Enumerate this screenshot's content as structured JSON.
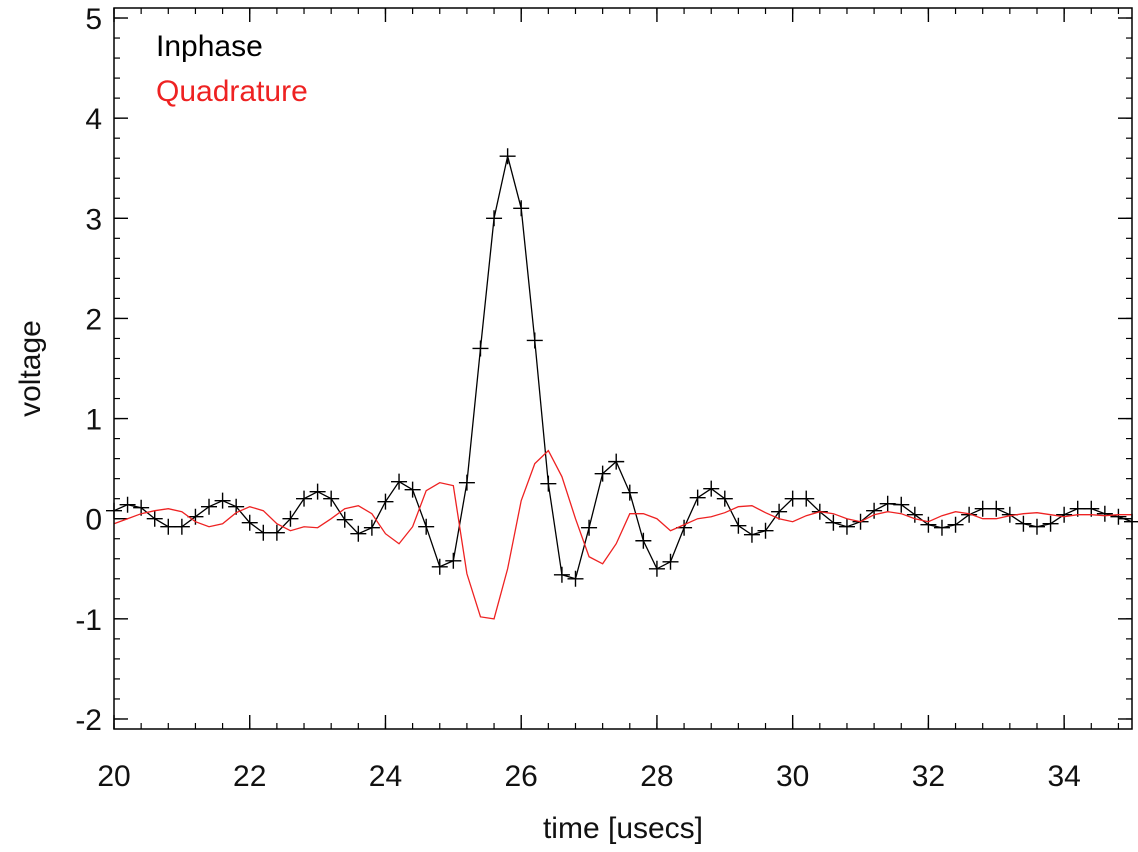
{
  "chart_data": {
    "type": "line",
    "xlabel": "time [usecs]",
    "ylabel": "voltage",
    "xlim": [
      20,
      35
    ],
    "ylim": [
      -2.1,
      5.1
    ],
    "x_ticks": [
      20,
      22,
      24,
      26,
      28,
      30,
      32,
      34
    ],
    "x_tick_labels": [
      "20",
      "22",
      "24",
      "26",
      "28",
      "30",
      "32",
      "34"
    ],
    "y_ticks": [
      -2,
      -1,
      0,
      1,
      2,
      3,
      4,
      5
    ],
    "y_tick_labels": [
      "-2",
      "-1",
      "0",
      "1",
      "2",
      "3",
      "4",
      "5"
    ],
    "x_minor_step": 0.4,
    "y_minor_step": 0.2,
    "grid": false,
    "legend_position": "top-left",
    "series": [
      {
        "name": "Inphase",
        "color": "#000000",
        "marker": "plus",
        "x": [
          20.0,
          20.2,
          20.4,
          20.6,
          20.8,
          21.0,
          21.2,
          21.4,
          21.6,
          21.8,
          22.0,
          22.2,
          22.4,
          22.6,
          22.8,
          23.0,
          23.2,
          23.4,
          23.6,
          23.8,
          24.0,
          24.2,
          24.4,
          24.6,
          24.8,
          25.0,
          25.2,
          25.4,
          25.6,
          25.8,
          26.0,
          26.2,
          26.4,
          26.6,
          26.8,
          27.0,
          27.2,
          27.4,
          27.6,
          27.8,
          28.0,
          28.2,
          28.4,
          28.6,
          28.8,
          29.0,
          29.2,
          29.4,
          29.6,
          29.8,
          30.0,
          30.2,
          30.4,
          30.6,
          30.8,
          31.0,
          31.2,
          31.4,
          31.6,
          31.8,
          32.0,
          32.2,
          32.4,
          32.6,
          32.8,
          33.0,
          33.2,
          33.4,
          33.6,
          33.8,
          34.0,
          34.2,
          34.4,
          34.6,
          34.8,
          35.0
        ],
        "y": [
          0.08,
          0.14,
          0.11,
          0.0,
          -0.08,
          -0.08,
          0.02,
          0.12,
          0.18,
          0.12,
          -0.04,
          -0.14,
          -0.14,
          0.0,
          0.2,
          0.27,
          0.2,
          -0.01,
          -0.15,
          -0.09,
          0.17,
          0.37,
          0.29,
          -0.08,
          -0.48,
          -0.42,
          0.36,
          1.7,
          3.0,
          3.62,
          3.1,
          1.78,
          0.35,
          -0.56,
          -0.6,
          -0.09,
          0.45,
          0.57,
          0.26,
          -0.22,
          -0.5,
          -0.43,
          -0.09,
          0.21,
          0.3,
          0.2,
          -0.07,
          -0.16,
          -0.12,
          0.07,
          0.2,
          0.2,
          0.07,
          -0.04,
          -0.08,
          -0.03,
          0.08,
          0.15,
          0.14,
          0.04,
          -0.06,
          -0.09,
          -0.06,
          0.04,
          0.1,
          0.1,
          0.04,
          -0.05,
          -0.08,
          -0.05,
          0.04,
          0.1,
          0.1,
          0.05,
          0.02,
          -0.03
        ]
      },
      {
        "name": "Quadrature",
        "color": "#ee2222",
        "marker": "none",
        "x": [
          20.0,
          20.2,
          20.4,
          20.6,
          20.8,
          21.0,
          21.2,
          21.4,
          21.6,
          21.8,
          22.0,
          22.2,
          22.4,
          22.6,
          22.8,
          23.0,
          23.2,
          23.4,
          23.6,
          23.8,
          24.0,
          24.2,
          24.4,
          24.6,
          24.8,
          25.0,
          25.2,
          25.4,
          25.6,
          25.8,
          26.0,
          26.2,
          26.4,
          26.6,
          26.8,
          27.0,
          27.2,
          27.4,
          27.6,
          27.8,
          28.0,
          28.2,
          28.4,
          28.6,
          28.8,
          29.0,
          29.2,
          29.4,
          29.6,
          29.8,
          30.0,
          30.2,
          30.4,
          30.6,
          30.8,
          31.0,
          31.2,
          31.4,
          31.6,
          31.8,
          32.0,
          32.2,
          32.4,
          32.6,
          32.8,
          33.0,
          33.2,
          33.4,
          33.6,
          33.8,
          34.0,
          34.2,
          34.4,
          34.6,
          34.8,
          35.0
        ],
        "y": [
          -0.05,
          0.0,
          0.05,
          0.08,
          0.1,
          0.07,
          -0.03,
          -0.08,
          -0.05,
          0.06,
          0.12,
          0.08,
          -0.05,
          -0.12,
          -0.08,
          -0.09,
          0.0,
          0.1,
          0.13,
          0.05,
          -0.15,
          -0.25,
          -0.08,
          0.28,
          0.36,
          0.33,
          -0.55,
          -0.98,
          -1.0,
          -0.5,
          0.18,
          0.55,
          0.68,
          0.42,
          0.0,
          -0.38,
          -0.45,
          -0.25,
          0.05,
          0.05,
          0.0,
          -0.12,
          -0.06,
          0.0,
          0.02,
          0.06,
          0.12,
          0.13,
          0.06,
          0.0,
          -0.03,
          0.03,
          0.07,
          0.05,
          0.0,
          -0.03,
          0.04,
          0.07,
          0.05,
          0.0,
          -0.03,
          0.03,
          0.07,
          0.05,
          0.0,
          0.0,
          0.03,
          0.05,
          0.06,
          0.04,
          0.02,
          0.04,
          0.04,
          0.03,
          0.04,
          0.04
        ]
      }
    ]
  }
}
